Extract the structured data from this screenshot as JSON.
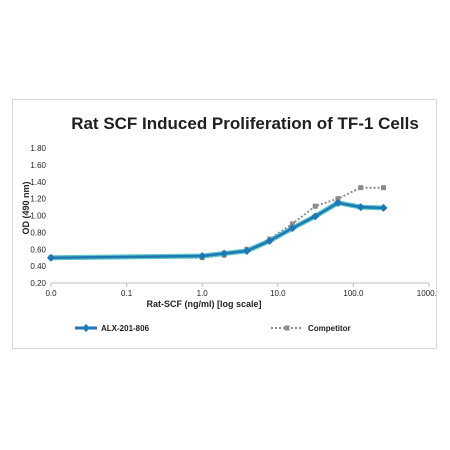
{
  "chart_data": {
    "type": "line",
    "title": "Rat SCF Induced Proliferation of TF-1 Cells",
    "xlabel": "Rat-SCF (ng/ml) [log scale]",
    "ylabel": "OD (490 nm)",
    "xscale": "log",
    "xlim": [
      0.01,
      1000
    ],
    "ylim": [
      0.2,
      1.8
    ],
    "x_ticks": [
      "0.0",
      "0.1",
      "1.0",
      "10.0",
      "100.0",
      "1000.0"
    ],
    "y_ticks": [
      "0.20",
      "0.40",
      "0.60",
      "0.80",
      "1.00",
      "1.20",
      "1.40",
      "1.60",
      "1.80"
    ],
    "grid": false,
    "legend_position": "bottom",
    "series": [
      {
        "name": "ALX-201-806",
        "color": "#1f77b4",
        "style": "solid",
        "x": [
          0.01,
          1.0,
          1.95,
          3.9,
          7.8,
          15.6,
          31.25,
          62.5,
          125,
          250
        ],
        "y": [
          0.5,
          0.52,
          0.55,
          0.58,
          0.7,
          0.85,
          0.99,
          1.15,
          1.1,
          1.09
        ]
      },
      {
        "name": "Competitor",
        "color": "#8c8c8c",
        "style": "dotted",
        "x": [
          0.01,
          1.0,
          1.95,
          3.9,
          7.8,
          15.6,
          31.25,
          62.5,
          125,
          250
        ],
        "y": [
          0.5,
          0.5,
          0.53,
          0.6,
          0.72,
          0.9,
          1.11,
          1.2,
          1.33,
          1.33
        ]
      }
    ]
  }
}
